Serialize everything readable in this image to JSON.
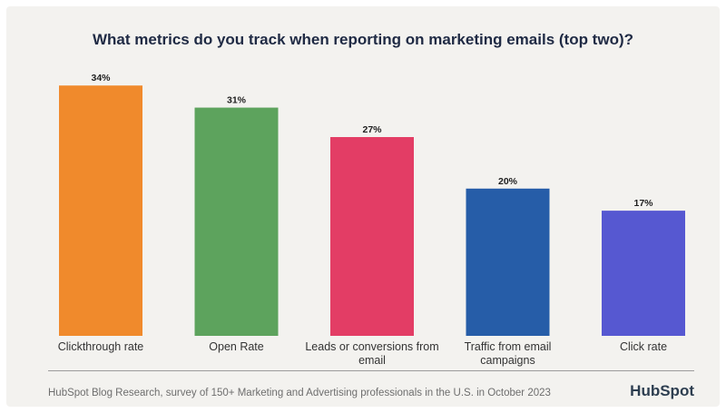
{
  "title": "What metrics do you track when reporting on marketing emails (top two)?",
  "chart_data": {
    "type": "bar",
    "categories": [
      "Clickthrough rate",
      "Open Rate",
      "Leads or conversions from email",
      "Traffic from email campaigns",
      "Click rate"
    ],
    "category_lines": [
      [
        "Clickthrough rate"
      ],
      [
        "Open Rate"
      ],
      [
        "Leads or conversions from",
        "email"
      ],
      [
        "Traffic from email",
        "campaigns"
      ],
      [
        "Click rate"
      ]
    ],
    "values": [
      34,
      31,
      27,
      20,
      17
    ],
    "value_labels": [
      "34%",
      "31%",
      "27%",
      "20%",
      "17%"
    ],
    "colors": [
      "#f08a2c",
      "#5da35d",
      "#e33d65",
      "#265da8",
      "#5658d1"
    ],
    "ylim": [
      0,
      36
    ],
    "xlabel": "",
    "ylabel": "",
    "grid": false
  },
  "footer": {
    "source": "HubSpot Blog Research, survey of 150+ Marketing and Advertising professionals in the U.S. in October 2023",
    "brand": "HubSpot"
  }
}
